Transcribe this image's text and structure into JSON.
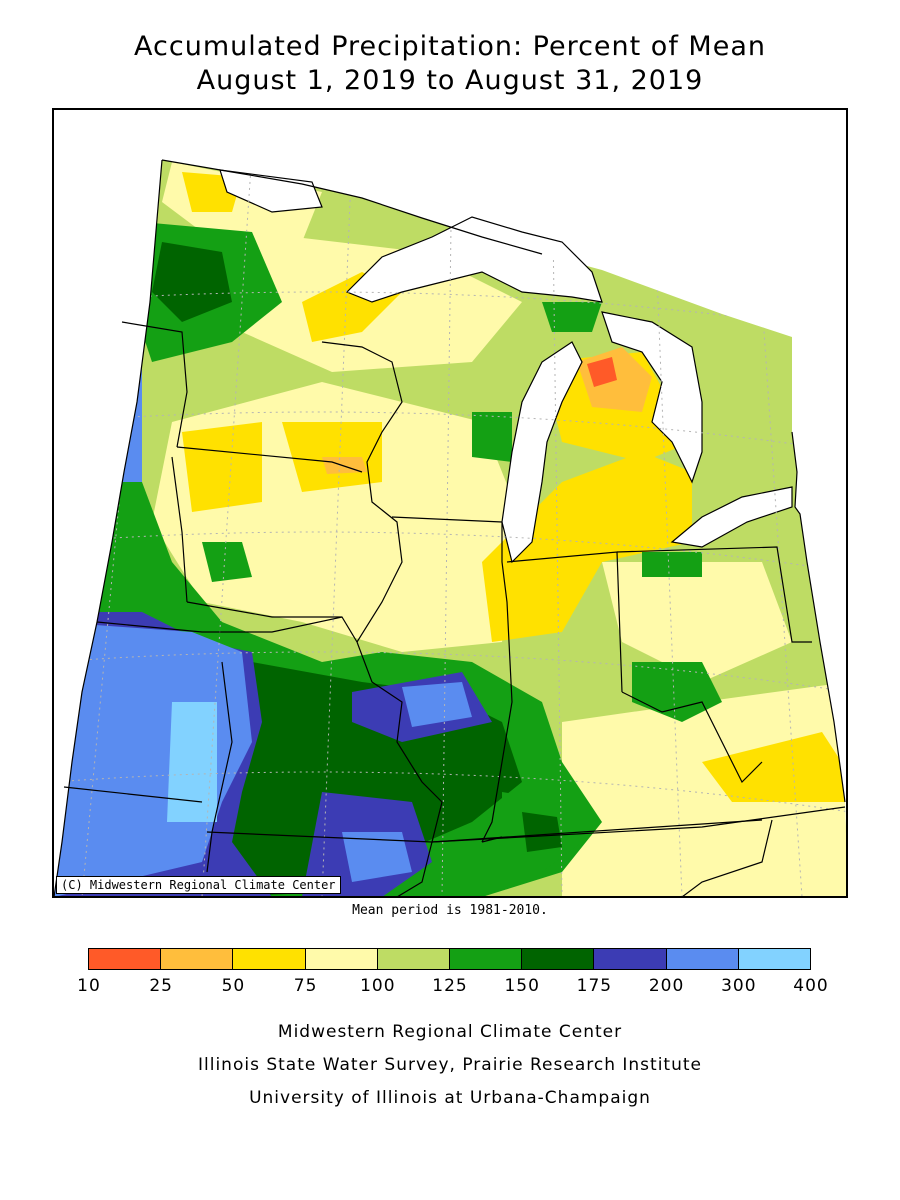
{
  "title_line1": "Accumulated Precipitation: Percent of Mean",
  "title_line2": "August 1, 2019 to August 31, 2019",
  "copyright": "(C) Midwestern Regional Climate Center",
  "mean_period": "Mean period is 1981-2010.",
  "legend": {
    "breaks": [
      "10",
      "25",
      "50",
      "75",
      "100",
      "125",
      "150",
      "175",
      "200",
      "300",
      "400"
    ],
    "colors": [
      "#ff5a28",
      "#ffbe3c",
      "#ffe100",
      "#fffaaa",
      "#bedc64",
      "#14a014",
      "#006400",
      "#3c3cb4",
      "#5a8cf0",
      "#82d2ff"
    ]
  },
  "credits": [
    "Midwestern Regional Climate Center",
    "Illinois State Water Survey, Prairie Research Institute",
    "University of Illinois at Urbana-Champaign"
  ],
  "colors": {
    "lake": "#ffffff",
    "border": "#000000",
    "grid": "#b4b4b4"
  }
}
